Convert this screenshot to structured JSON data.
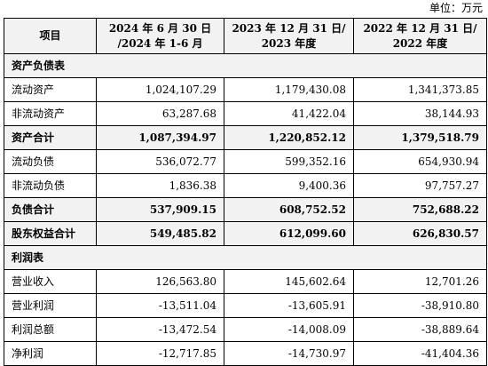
{
  "unit_label": "单位：万元",
  "table": {
    "header": {
      "item": "项目",
      "col1_line1": "2024 年 6 月 30 日",
      "col1_line2": "/2024 年 1-6 月",
      "col2_line1": "2023 年 12 月 31 日/",
      "col2_line2": "2023 年度",
      "col3_line1": "2022 年 12 月 31 日/",
      "col3_line2": "2022 年度"
    },
    "rows": [
      {
        "type": "section",
        "label": "资产负债表"
      },
      {
        "type": "item",
        "label": "流动资产",
        "v1": "1,024,107.29",
        "v2": "1,179,430.08",
        "v3": "1,341,373.85"
      },
      {
        "type": "item",
        "label": "非流动资产",
        "v1": "63,287.68",
        "v2": "41,422.04",
        "v3": "38,144.93"
      },
      {
        "type": "total",
        "label": "资产合计",
        "v1": "1,087,394.97",
        "v2": "1,220,852.12",
        "v3": "1,379,518.79"
      },
      {
        "type": "item",
        "label": "流动负债",
        "v1": "536,072.77",
        "v2": "599,352.16",
        "v3": "654,930.94"
      },
      {
        "type": "item",
        "label": "非流动负债",
        "v1": "1,836.38",
        "v2": "9,400.36",
        "v3": "97,757.27"
      },
      {
        "type": "total",
        "label": "负债合计",
        "v1": "537,909.15",
        "v2": "608,752.52",
        "v3": "752,688.22"
      },
      {
        "type": "total",
        "label": "股东权益合计",
        "v1": "549,485.82",
        "v2": "612,099.60",
        "v3": "626,830.57"
      },
      {
        "type": "section",
        "label": "利润表"
      },
      {
        "type": "item",
        "label": "营业收入",
        "v1": "126,563.80",
        "v2": "145,602.64",
        "v3": "12,701.26"
      },
      {
        "type": "item",
        "label": "营业利润",
        "v1": "-13,511.04",
        "v2": "-13,605.91",
        "v3": "-38,910.80"
      },
      {
        "type": "item",
        "label": "利润总额",
        "v1": "-13,472.54",
        "v2": "-14,008.09",
        "v3": "-38,889.64"
      },
      {
        "type": "item",
        "label": "净利润",
        "v1": "-12,717.85",
        "v2": "-14,730.97",
        "v3": "-41,404.36"
      }
    ]
  }
}
